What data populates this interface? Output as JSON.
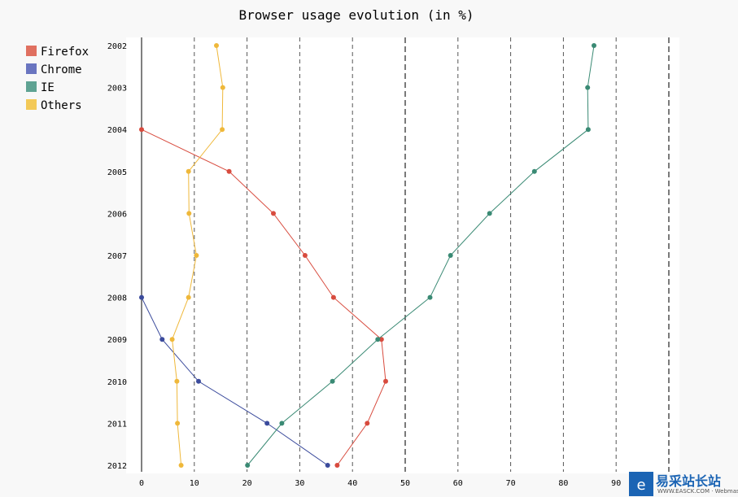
{
  "chart_data": {
    "type": "line",
    "orientation": "horizontal",
    "title": "Browser usage evolution (in %)",
    "categories": [
      "2002",
      "2003",
      "2004",
      "2005",
      "2006",
      "2007",
      "2008",
      "2009",
      "2010",
      "2011",
      "2012"
    ],
    "xlim": [
      0,
      100
    ],
    "x_ticks": [
      0,
      10,
      20,
      30,
      40,
      50,
      60,
      70,
      80,
      90
    ],
    "major_ticks": [
      50,
      100
    ],
    "grid": true,
    "legend_position": "top-left",
    "series": [
      {
        "name": "Firefox",
        "color": "#d84b3e",
        "legend_color": "#e07060",
        "values": [
          null,
          null,
          0,
          16.6,
          25,
          31,
          36.4,
          45.5,
          46.3,
          42.8,
          37.1
        ]
      },
      {
        "name": "Chrome",
        "color": "#3b4b9c",
        "legend_color": "#6a75c0",
        "values": [
          null,
          null,
          null,
          null,
          null,
          null,
          0,
          3.9,
          10.8,
          23.8,
          35.3
        ]
      },
      {
        "name": "IE",
        "color": "#3a8a74",
        "legend_color": "#5fa393",
        "values": [
          85.8,
          84.6,
          84.7,
          74.5,
          66,
          58.6,
          54.7,
          44.8,
          36.2,
          26.6,
          20.1
        ]
      },
      {
        "name": "Others",
        "color": "#efb83a",
        "legend_color": "#f3c957",
        "values": [
          14.2,
          15.4,
          15.3,
          8.9,
          9,
          10.4,
          8.9,
          5.8,
          6.7,
          6.8,
          7.5
        ]
      }
    ]
  },
  "watermark": {
    "text": "易采站长站",
    "subtext": "WWW.EASCK.COM · Webmaster"
  }
}
